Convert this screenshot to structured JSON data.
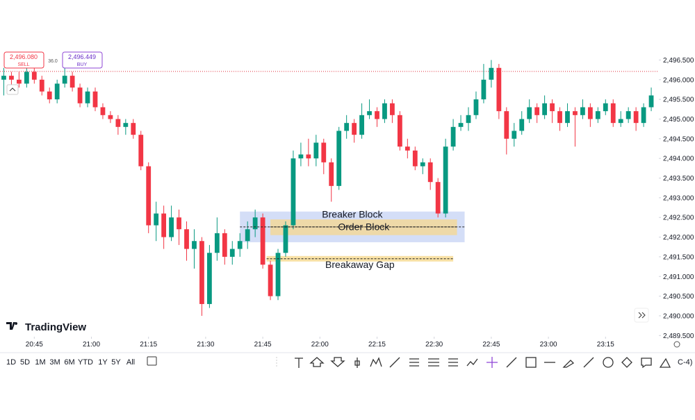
{
  "chart_data": {
    "type": "candlestick",
    "order_panel": {
      "sell_price": "2,496.080",
      "sell_label": "SELL",
      "spread": "36.0",
      "buy_price": "2,496.449",
      "buy_label": "BUY"
    },
    "logo": "TradingView",
    "timeframes": [
      "1D",
      "5D",
      "1M",
      "3M",
      "6M",
      "YTD",
      "1Y",
      "5Y",
      "All"
    ],
    "timezone_fragment": "C-4)",
    "up_color": "#089981",
    "down_color": "#f23645",
    "price_line": 2496.21,
    "price_line_color": "#e0303f",
    "xlim": [
      1236,
      1409
    ],
    "xticks": [
      {
        "value": 1245,
        "label": "20:45"
      },
      {
        "value": 1260,
        "label": "21:00"
      },
      {
        "value": 1275,
        "label": "21:15"
      },
      {
        "value": 1290,
        "label": "21:30"
      },
      {
        "value": 1305,
        "label": "21:45"
      },
      {
        "value": 1320,
        "label": "22:00"
      },
      {
        "value": 1335,
        "label": "22:15"
      },
      {
        "value": 1350,
        "label": "22:30"
      },
      {
        "value": 1365,
        "label": "22:45"
      },
      {
        "value": 1380,
        "label": "23:00"
      },
      {
        "value": 1395,
        "label": "23:15"
      }
    ],
    "ylim": [
      2489.47,
      2496.79
    ],
    "yticks": [
      {
        "value": 2489.5,
        "label": "2,489.500"
      },
      {
        "value": 2490,
        "label": "2,490.000"
      },
      {
        "value": 2490.5,
        "label": "2,490.500"
      },
      {
        "value": 2491,
        "label": "2,491.000"
      },
      {
        "value": 2491.5,
        "label": "2,491.500"
      },
      {
        "value": 2492,
        "label": "2,492.000"
      },
      {
        "value": 2492.5,
        "label": "2,492.500"
      },
      {
        "value": 2493,
        "label": "2,493.000"
      },
      {
        "value": 2493.5,
        "label": "2,493.500"
      },
      {
        "value": 2494,
        "label": "2,494.000"
      },
      {
        "value": 2494.5,
        "label": "2,494.500"
      },
      {
        "value": 2495,
        "label": "2,495.000"
      },
      {
        "value": 2495.5,
        "label": "2,495.500"
      },
      {
        "value": 2496,
        "label": "2,496.000"
      },
      {
        "value": 2496.5,
        "label": "2,496.500"
      }
    ],
    "zones": [
      {
        "label": "Breaker Block",
        "x": [
          1299,
          1358
        ],
        "y": [
          2491.87,
          2492.65
        ],
        "line": 2492.26,
        "color": "#c9d6f5"
      },
      {
        "label": "Order Block",
        "x": [
          1307,
          1356
        ],
        "y": [
          2492.05,
          2492.45
        ],
        "line": 2492.26,
        "color": "#f2d89a"
      },
      {
        "label": "Breakaway Gap",
        "x": [
          1306,
          1355
        ],
        "y": [
          2491.38,
          2491.52
        ],
        "line": 2491.45,
        "color": "#f7dc95"
      }
    ],
    "x": [
      1237,
      1239,
      1241,
      1243,
      1245,
      1247,
      1249,
      1251,
      1253,
      1255,
      1257,
      1259,
      1261,
      1263,
      1265,
      1267,
      1269,
      1271,
      1273,
      1275,
      1277,
      1279,
      1281,
      1283,
      1285,
      1287,
      1289,
      1291,
      1293,
      1295,
      1297,
      1299,
      1301,
      1303,
      1305,
      1307,
      1309,
      1311,
      1313,
      1315,
      1317,
      1319,
      1321,
      1323,
      1325,
      1327,
      1329,
      1331,
      1333,
      1335,
      1337,
      1339,
      1341,
      1343,
      1345,
      1347,
      1349,
      1351,
      1353,
      1355,
      1357,
      1359,
      1361,
      1363,
      1365,
      1367,
      1369,
      1371,
      1373,
      1375,
      1377,
      1379,
      1381,
      1383,
      1385,
      1387,
      1389,
      1391,
      1393,
      1395,
      1397,
      1399,
      1401,
      1403,
      1405,
      1407
    ],
    "open": [
      2496.0,
      2496.1,
      2496.0,
      2495.9,
      2496.2,
      2496.0,
      2495.7,
      2495.5,
      2495.9,
      2496.1,
      2495.8,
      2495.4,
      2495.7,
      2495.3,
      2495.1,
      2495.0,
      2494.8,
      2494.9,
      2494.6,
      2493.8,
      2492.3,
      2492.6,
      2492.0,
      2492.5,
      2492.2,
      2491.7,
      2491.9,
      2490.3,
      2491.6,
      2492.1,
      2491.5,
      2491.7,
      2491.9,
      2492.2,
      2492.5,
      2491.3,
      2490.5,
      2491.6,
      2492.3,
      2494.0,
      2494.1,
      2494.0,
      2494.4,
      2493.9,
      2493.3,
      2494.7,
      2494.9,
      2494.6,
      2495.1,
      2495.2,
      2495.0,
      2495.4,
      2495.1,
      2494.3,
      2494.2,
      2493.8,
      2493.9,
      2493.4,
      2492.6,
      2494.3,
      2494.8,
      2494.9,
      2495.1,
      2495.5,
      2496.0,
      2496.3,
      2495.2,
      2494.5,
      2494.7,
      2495.0,
      2495.3,
      2495.1,
      2495.4,
      2495.2,
      2494.9,
      2495.2,
      2495.1,
      2495.3,
      2495.0,
      2495.2,
      2495.4,
      2494.9,
      2495.0,
      2495.2,
      2494.9,
      2495.3
    ],
    "high": [
      2496.3,
      2496.2,
      2496.2,
      2496.3,
      2496.3,
      2496.1,
      2495.8,
      2496.0,
      2496.3,
      2496.2,
      2495.9,
      2495.8,
      2495.8,
      2495.4,
      2495.2,
      2495.1,
      2495.0,
      2495.0,
      2494.7,
      2493.9,
      2492.9,
      2492.8,
      2492.8,
      2492.7,
      2492.4,
      2492.2,
      2492.0,
      2491.8,
      2492.5,
      2492.2,
      2491.9,
      2492.1,
      2492.4,
      2492.7,
      2492.6,
      2491.4,
      2491.7,
      2492.4,
      2494.2,
      2494.4,
      2494.5,
      2494.6,
      2494.5,
      2494.0,
      2494.8,
      2495.1,
      2495.0,
      2495.4,
      2495.5,
      2495.3,
      2495.5,
      2495.5,
      2495.2,
      2494.5,
      2494.3,
      2494.0,
      2494.0,
      2493.5,
      2494.5,
      2495.0,
      2495.1,
      2495.3,
      2495.7,
      2496.4,
      2496.5,
      2496.4,
      2495.3,
      2494.9,
      2495.2,
      2495.5,
      2495.4,
      2495.6,
      2495.5,
      2495.3,
      2495.4,
      2495.3,
      2495.5,
      2495.4,
      2495.3,
      2495.5,
      2495.5,
      2495.2,
      2495.3,
      2495.3,
      2495.4,
      2495.8
    ],
    "low": [
      2495.6,
      2495.8,
      2495.8,
      2495.8,
      2495.9,
      2495.6,
      2495.4,
      2495.4,
      2495.8,
      2495.7,
      2495.3,
      2495.3,
      2495.2,
      2495.0,
      2494.9,
      2494.6,
      2494.6,
      2494.5,
      2493.7,
      2492.1,
      2491.9,
      2491.7,
      2491.9,
      2491.8,
      2491.4,
      2491.2,
      2490.0,
      2490.2,
      2491.4,
      2491.3,
      2491.3,
      2491.5,
      2491.7,
      2492.0,
      2491.2,
      2490.4,
      2490.4,
      2491.5,
      2492.2,
      2493.8,
      2493.8,
      2493.8,
      2493.6,
      2492.9,
      2493.2,
      2494.5,
      2494.4,
      2494.5,
      2495.0,
      2494.8,
      2494.9,
      2494.9,
      2494.2,
      2494.0,
      2493.7,
      2493.6,
      2493.2,
      2492.5,
      2492.5,
      2494.2,
      2494.7,
      2494.7,
      2495.0,
      2495.4,
      2495.8,
      2495.0,
      2494.1,
      2494.3,
      2494.6,
      2494.9,
      2494.9,
      2495.0,
      2494.9,
      2494.7,
      2494.8,
      2494.3,
      2495.0,
      2494.8,
      2494.9,
      2495.1,
      2494.8,
      2494.8,
      2494.9,
      2494.7,
      2494.8,
      2495.2
    ],
    "close": [
      2496.1,
      2496.0,
      2495.9,
      2496.2,
      2496.0,
      2495.7,
      2495.5,
      2495.9,
      2496.1,
      2495.8,
      2495.4,
      2495.7,
      2495.3,
      2495.1,
      2495.0,
      2494.8,
      2494.9,
      2494.6,
      2493.8,
      2492.3,
      2492.6,
      2492.0,
      2492.5,
      2492.2,
      2491.7,
      2491.9,
      2490.3,
      2491.6,
      2492.1,
      2491.5,
      2491.7,
      2491.9,
      2492.2,
      2492.5,
      2491.3,
      2490.5,
      2491.6,
      2492.3,
      2494.0,
      2494.1,
      2494.0,
      2494.4,
      2493.9,
      2493.3,
      2494.7,
      2494.9,
      2494.6,
      2495.1,
      2495.2,
      2495.0,
      2495.4,
      2495.1,
      2494.3,
      2494.2,
      2493.8,
      2493.9,
      2493.4,
      2492.6,
      2494.3,
      2494.8,
      2494.9,
      2495.1,
      2495.5,
      2496.0,
      2496.3,
      2495.2,
      2494.5,
      2494.7,
      2495.0,
      2495.3,
      2495.1,
      2495.4,
      2495.2,
      2494.9,
      2495.2,
      2495.1,
      2495.3,
      2495.0,
      2495.2,
      2495.4,
      2494.9,
      2495.0,
      2495.2,
      2494.9,
      2495.3,
      2495.6
    ]
  }
}
